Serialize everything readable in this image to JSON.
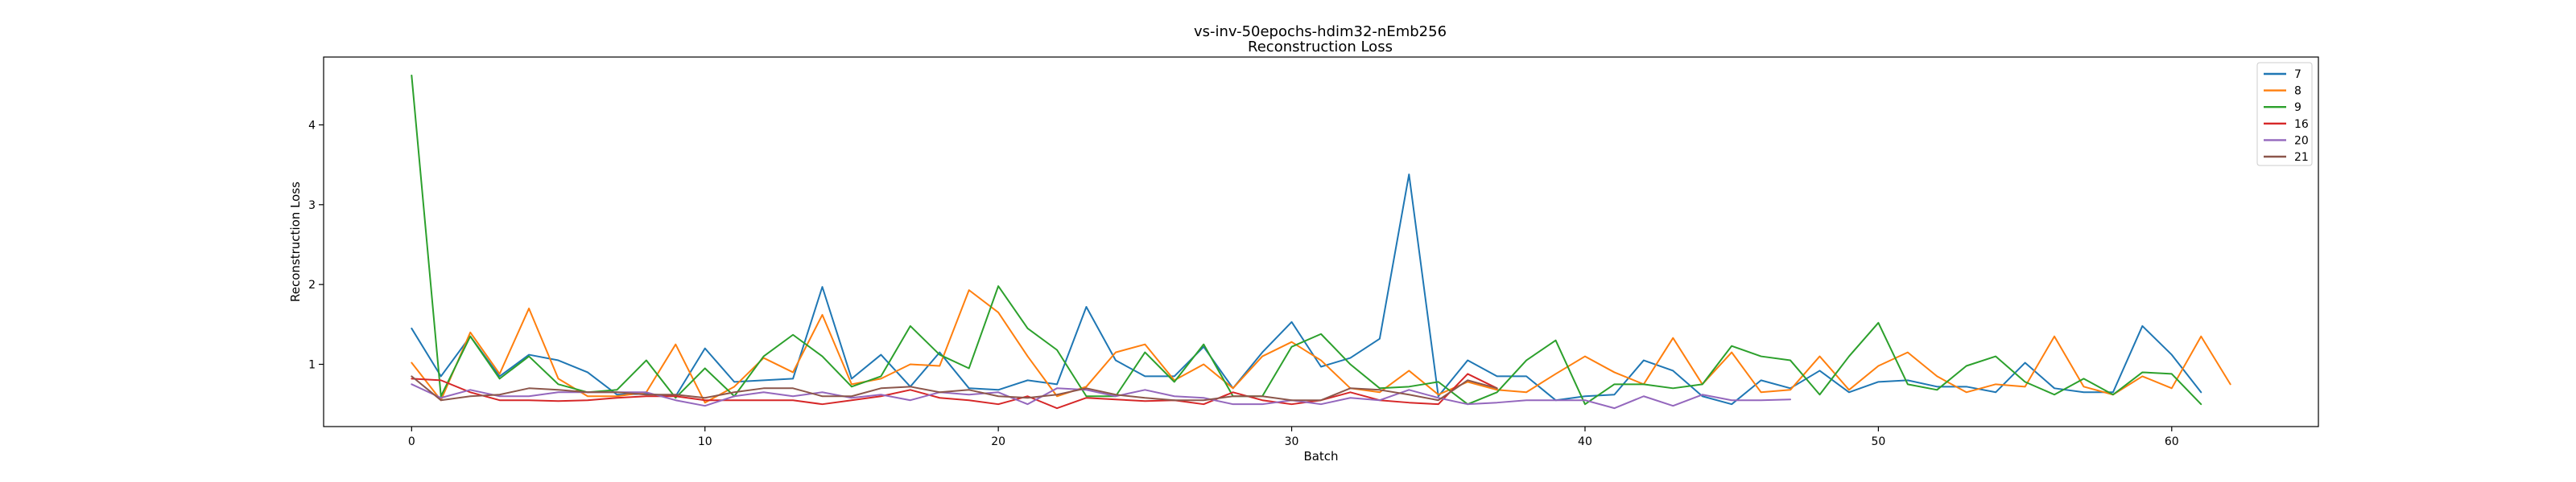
{
  "chart_data": {
    "type": "line",
    "title": "vs-inv-50epochs-hdim32-nEmb256",
    "subtitle": "Reconstruction Loss",
    "xlabel": "Batch",
    "ylabel": "Reconstruction Loss",
    "xlim": [
      -3,
      65
    ],
    "ylim": [
      0.22,
      4.85
    ],
    "xticks": [
      0,
      10,
      20,
      30,
      40,
      50,
      60
    ],
    "yticks": [
      1,
      2,
      3,
      4
    ],
    "legend_position": "top-right",
    "series": [
      {
        "name": "7",
        "color": "#1f77b4",
        "values": [
          1.45,
          0.85,
          1.35,
          0.85,
          1.12,
          1.05,
          0.9,
          0.62,
          0.63,
          0.6,
          1.2,
          0.78,
          0.8,
          0.82,
          1.97,
          0.82,
          1.12,
          0.72,
          1.15,
          0.7,
          0.68,
          0.8,
          0.75,
          1.72,
          1.05,
          0.85,
          0.85,
          1.22,
          0.7,
          1.15,
          1.53,
          0.97,
          1.08,
          1.32,
          3.38,
          0.6,
          1.05,
          0.85,
          0.85,
          0.55,
          0.6,
          0.62,
          1.05,
          0.92,
          0.6,
          0.5,
          0.8,
          0.7,
          0.92,
          0.65,
          0.78,
          0.8,
          0.72,
          0.72,
          0.65,
          1.02,
          0.7,
          0.65,
          0.65,
          1.48,
          1.12,
          0.65
        ]
      },
      {
        "name": "8",
        "color": "#ff7f0e",
        "values": [
          1.02,
          0.55,
          1.4,
          0.88,
          1.7,
          0.82,
          0.6,
          0.6,
          0.65,
          1.25,
          0.52,
          0.72,
          1.08,
          0.9,
          1.62,
          0.75,
          0.82,
          1.0,
          0.98,
          1.93,
          1.65,
          1.1,
          0.6,
          0.72,
          1.15,
          1.25,
          0.8,
          1.0,
          0.7,
          1.1,
          1.28,
          1.05,
          0.7,
          0.65,
          0.92,
          0.62,
          0.78,
          0.68,
          0.65,
          0.88,
          1.1,
          0.9,
          0.75,
          1.33,
          0.75,
          1.15,
          0.65,
          0.68,
          1.1,
          0.68,
          0.98,
          1.15,
          0.85,
          0.65,
          0.75,
          0.72,
          1.35,
          0.72,
          0.62,
          0.85,
          0.7,
          1.35,
          0.75
        ]
      },
      {
        "name": "9",
        "color": "#2ca02c",
        "values": [
          4.62,
          0.6,
          1.35,
          0.82,
          1.1,
          0.75,
          0.65,
          0.68,
          1.05,
          0.58,
          0.95,
          0.6,
          1.1,
          1.37,
          1.1,
          0.72,
          0.85,
          1.48,
          1.12,
          0.95,
          1.98,
          1.45,
          1.18,
          0.6,
          0.6,
          1.15,
          0.78,
          1.25,
          0.6,
          0.6,
          1.22,
          1.38,
          1.0,
          0.7,
          0.72,
          0.78,
          0.5,
          0.65,
          1.05,
          1.3,
          0.5,
          0.75,
          0.75,
          0.7,
          0.75,
          1.23,
          1.1,
          1.05,
          0.62,
          1.1,
          1.52,
          0.75,
          0.68,
          0.98,
          1.1,
          0.78,
          0.62,
          0.82,
          0.62,
          0.9,
          0.88,
          0.5
        ]
      },
      {
        "name": "16",
        "color": "#d62728",
        "values": [
          0.82,
          0.8,
          0.65,
          0.55,
          0.55,
          0.54,
          0.55,
          0.58,
          0.6,
          0.6,
          0.55,
          0.55,
          0.55,
          0.55,
          0.5,
          0.55,
          0.6,
          0.68,
          0.58,
          0.55,
          0.5,
          0.6,
          0.45,
          0.58,
          0.56,
          0.54,
          0.55,
          0.5,
          0.65,
          0.55,
          0.5,
          0.55,
          0.65,
          0.55,
          0.52,
          0.5,
          0.88,
          0.7
        ]
      },
      {
        "name": "20",
        "color": "#9467bd",
        "values": [
          0.75,
          0.58,
          0.68,
          0.6,
          0.6,
          0.65,
          0.65,
          0.65,
          0.65,
          0.55,
          0.48,
          0.6,
          0.65,
          0.6,
          0.65,
          0.58,
          0.62,
          0.55,
          0.65,
          0.62,
          0.65,
          0.5,
          0.7,
          0.68,
          0.6,
          0.68,
          0.6,
          0.58,
          0.5,
          0.5,
          0.55,
          0.5,
          0.58,
          0.55,
          0.68,
          0.58,
          0.5,
          0.52,
          0.55,
          0.55,
          0.55,
          0.45,
          0.6,
          0.48,
          0.62,
          0.55,
          0.55,
          0.56
        ]
      },
      {
        "name": "21",
        "color": "#8c564b",
        "values": [
          0.85,
          0.55,
          0.6,
          0.62,
          0.7,
          0.68,
          0.65,
          0.65,
          0.62,
          0.62,
          0.58,
          0.65,
          0.7,
          0.7,
          0.6,
          0.6,
          0.7,
          0.72,
          0.65,
          0.68,
          0.6,
          0.58,
          0.62,
          0.7,
          0.62,
          0.58,
          0.55,
          0.55,
          0.6,
          0.6,
          0.55,
          0.55,
          0.7,
          0.68,
          0.62,
          0.55,
          0.8,
          0.7
        ]
      }
    ]
  }
}
